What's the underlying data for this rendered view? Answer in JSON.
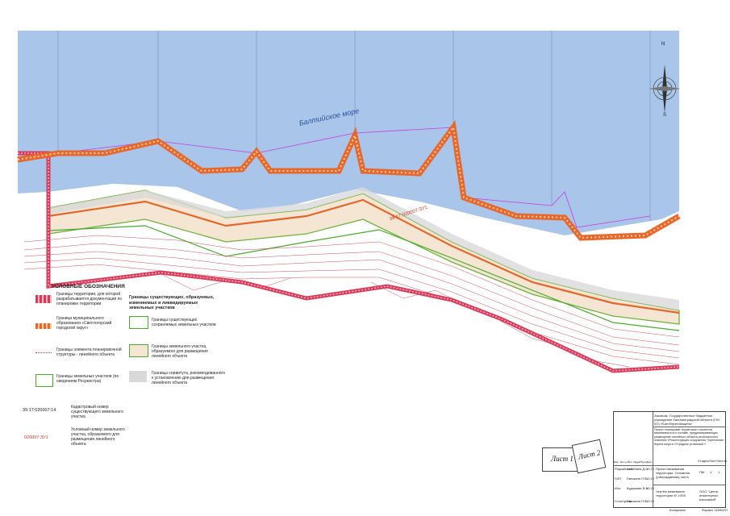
{
  "map": {
    "sea_label": "Балтийское море",
    "parcel_label": "39:17:020007:ЗУ1",
    "compass": {
      "n": "N",
      "s": "S"
    }
  },
  "legend": {
    "title": "УСЛОВНЫЕ ОБОЗНАЧЕНИЯ",
    "items_left": [
      {
        "text": "Границы территории, для которой разрабатывается документация по планировке территории",
        "style": "red-hatch"
      },
      {
        "text": "Граница муниципального образования «Светлогорский городской округ»",
        "style": "orange-dash"
      },
      {
        "text": "Границы элемента планировочной структуры - линейного объекта",
        "style": "dotted"
      },
      {
        "text": "Границы земельных участков (по сведениям Росреестра)",
        "style": "green-line"
      }
    ],
    "cadastral_sample": "39:17:020007:14",
    "cadastral_sample_text": "Кадастровый номер существующего земельного участка",
    "conditional_sample": "020007:ЗУ1",
    "conditional_sample_text": "Условный номер земельного участка, образуемого для размещения линейного объекта",
    "right_title": "Границы существующих, образуемых, изменяемых и ликвидируемых земельных участков",
    "items_right": [
      {
        "text": "Границы существующих сохраняемых земельных участков",
        "style": "green-box"
      },
      {
        "text": "Границы земельного участка, образуемого для размещения линейного объекта",
        "style": "beige-box"
      },
      {
        "text": "Границы сервитута, рекомендованного к установлению для размещения линейного объекта",
        "style": "grey-box"
      }
    ]
  },
  "sheets": [
    "Лист 1",
    "Лист 2"
  ],
  "title_block": {
    "customer": "Заказчик: Государственное бюджетное учреждение Калининградской области (ГБУ КО) «Балтберегозащита»",
    "project": "Проект планировки территории с проектом межевания в его составе, предусматривающих размещение линейного объекта регионального значения «Реконструкция сооружения \"Укрепление берега моря в г.Отрадное установка\"»",
    "part": "Проект межевания территории. Основная (утверждаемая) часть",
    "drawing": "Чертёж межевания территории М 1:500",
    "org": "ООО \"Центр инженерных изысканий\"",
    "stage_headers": [
      "Стадия",
      "Лист",
      "Листов"
    ],
    "stage_values": [
      "ПМ",
      "1",
      "1"
    ],
    "columns": [
      "Изм.",
      "Кол.уч",
      "Лист",
      "№док",
      "Подп.",
      "Дата"
    ],
    "roles": [
      "Разработал",
      "ГИП",
      "Исп.",
      "Н.контроль"
    ],
    "names": [
      "Хабибина Д.С.",
      "Ганькина П.В.",
      "Кудашова В.А.",
      "Ганькина П.В."
    ],
    "date": "10.20",
    "copied": "Копировал",
    "format": "Формат 1189х297",
    "sheet_no": "Лист 1",
    "num_shown": "0"
  }
}
